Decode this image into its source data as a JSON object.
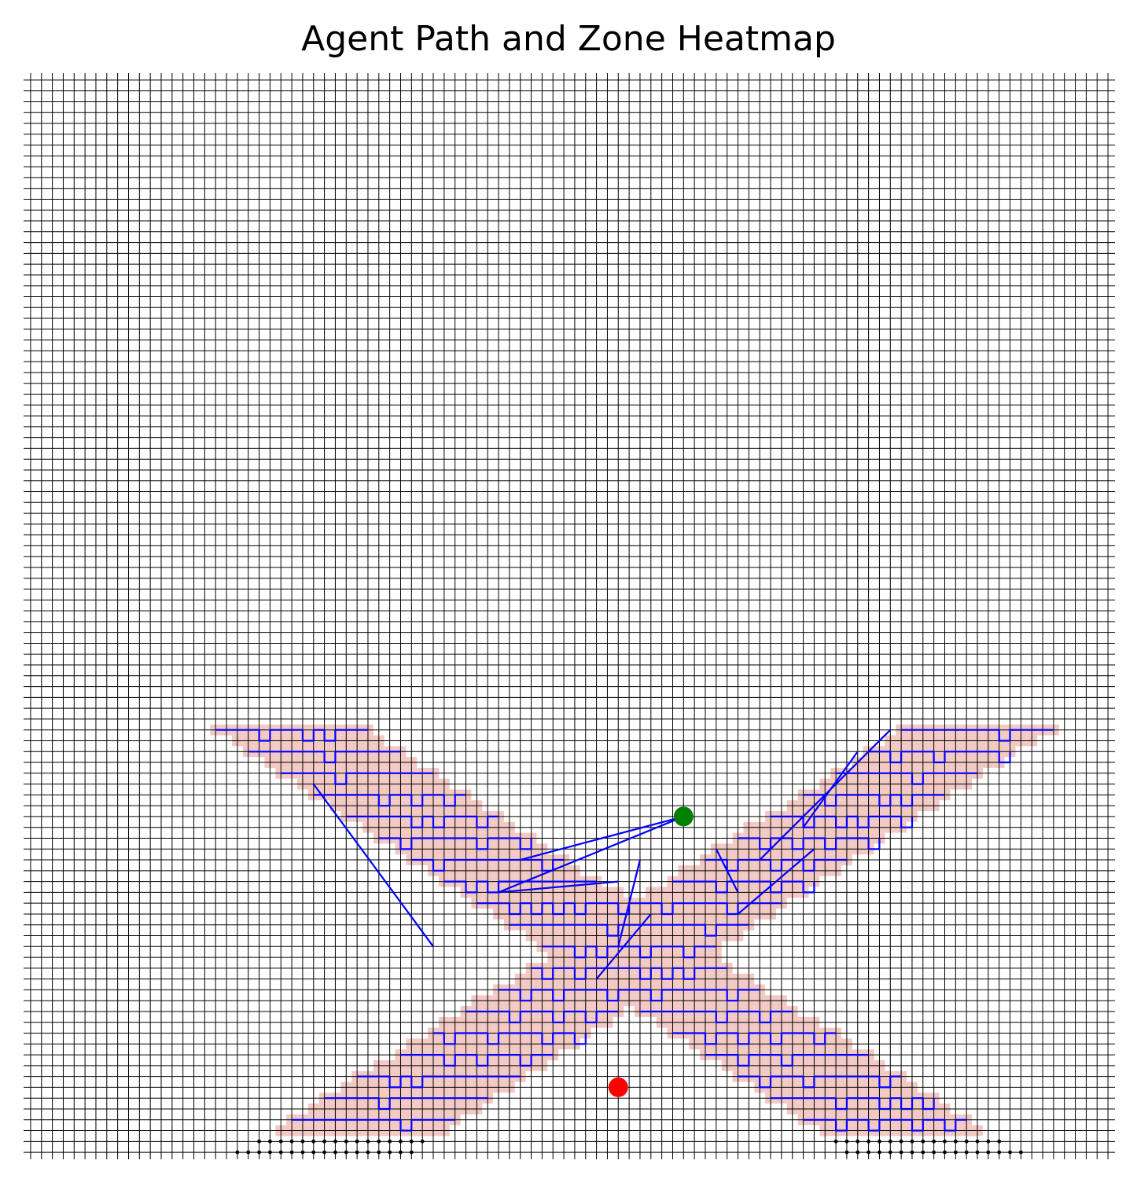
{
  "chart_data": {
    "type": "heatmap",
    "title": "Agent Path and Zone Heatmap",
    "xlabel": "",
    "ylabel": "",
    "grid": true,
    "axes_visible": false,
    "grid_size": [
      100,
      100
    ],
    "x_range": [
      0,
      99
    ],
    "y_range": [
      0,
      99
    ],
    "y_direction": "down",
    "colors": {
      "grid_line": "#000000",
      "visited_cell": "#f2c9c4",
      "zone_marker": "#000000",
      "path": "#0000ff",
      "start_marker": "#008000",
      "end_marker": "#ff0000"
    },
    "zone": {
      "shape": "X",
      "rows": [
        60,
        99
      ],
      "center_col": 55,
      "left_arm": {
        "top_col": 24,
        "bottom_col": 27
      },
      "right_arm": {
        "top_col": 87,
        "bottom_col": 83
      },
      "arm_width_top": 14,
      "arm_width_bottom": 16,
      "visited_rows": [
        60,
        98
      ],
      "unvisited_marker": "dot"
    },
    "series": [
      {
        "markers": [
          {
            "role": "start",
            "x": 60,
            "y": 68
          },
          {
            "role": "end",
            "x": 54,
            "y": 93
          }
        ],
        "jumps": [
          {
            "from": [
              60,
              68
            ],
            "to": [
              45,
              72
            ]
          },
          {
            "from": [
              60,
              68
            ],
            "to": [
              43,
              75
            ]
          },
          {
            "from": [
              43,
              75
            ],
            "to": [
              54,
              74
            ]
          },
          {
            "from": [
              56,
              72
            ],
            "to": [
              54,
              80
            ]
          },
          {
            "from": [
              57,
              77
            ],
            "to": [
              52,
              83
            ]
          },
          {
            "from": [
              63,
              71
            ],
            "to": [
              65,
              75
            ]
          },
          {
            "from": [
              76,
              62
            ],
            "to": [
              71,
              69
            ]
          },
          {
            "from": [
              79,
              60
            ],
            "to": [
              67,
              72
            ]
          },
          {
            "from": [
              72,
              71
            ],
            "to": [
              65,
              77
            ]
          },
          {
            "from": [
              26,
              65
            ],
            "to": [
              37,
              80
            ]
          }
        ]
      }
    ]
  }
}
